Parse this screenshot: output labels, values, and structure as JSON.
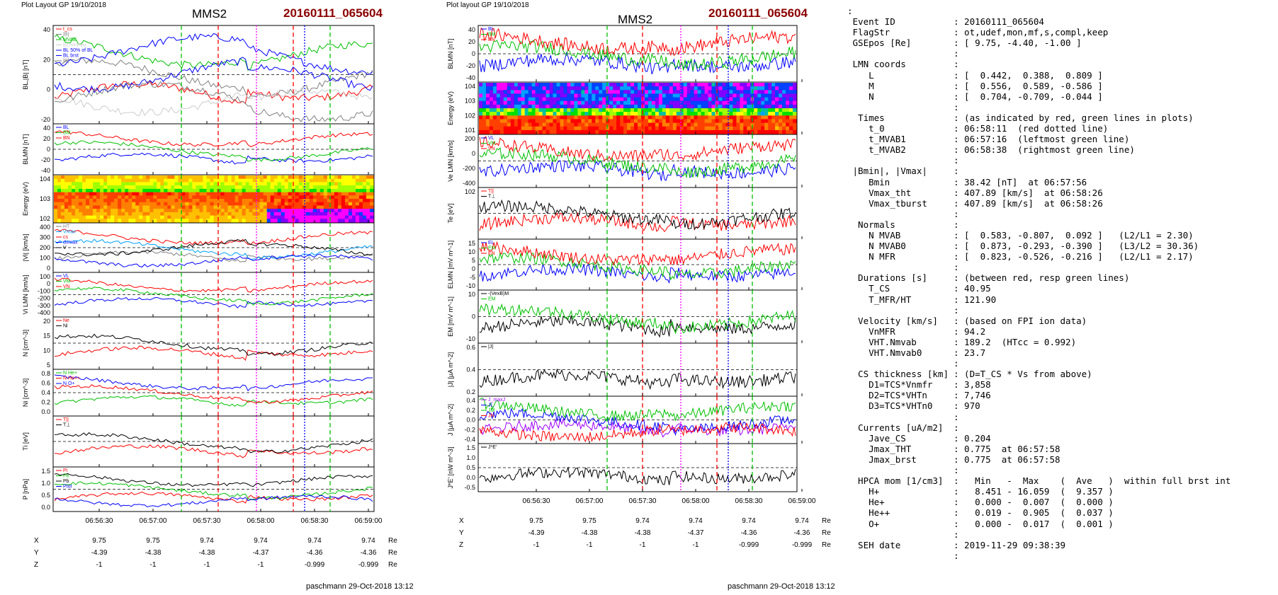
{
  "left_figure": {
    "header": "Plot Layout GP 19/10/2018",
    "probe": "MMS2",
    "event": "20160111_065604",
    "credit": "paschmann 29-Oct-2018 13:12",
    "time_ticks": [
      "06:56:30",
      "06:57:00",
      "06:57:30",
      "06:58:00",
      "06:58:30",
      "06:59:00"
    ],
    "panels": [
      {
        "ylabel": "BL,|B| [nT]",
        "yticks": [
          "40",
          "20",
          "0",
          "-20"
        ],
        "legend": [
          "t_cs",
          "|B|",
          "MVAB",
          "BLminmax",
          "BL 50% of BL",
          "BL brst",
          "|B|"
        ],
        "legend_colors": [
          "#ff0000",
          "#808080",
          "#00c000",
          "#cccccc",
          "#0000ff",
          "#0000ff",
          "#808080"
        ]
      },
      {
        "ylabel": "BLMN [nT]",
        "yticks": [
          "40",
          "20",
          "0",
          "-20",
          "-40"
        ],
        "legend": [
          "BL",
          "BM",
          "BN"
        ],
        "legend_colors": [
          "#0000ff",
          "#00c000",
          "#ff0000"
        ]
      },
      {
        "ylabel": "Energy (eV)",
        "yticks": [
          "10^4",
          "10^3",
          "10^2"
        ]
      },
      {
        "ylabel": "|Vi| [km/s]",
        "yticks": [
          "400",
          "300",
          "200",
          "100",
          "0"
        ],
        "legend": [
          "HT",
          "Vmax",
          "cs",
          "dvmax",
          "V"
        ],
        "legend_colors": [
          "#808080",
          "#00a0ff",
          "#ff0000",
          "#0000ff",
          "#000000"
        ]
      },
      {
        "ylabel": "Vi LMN [km/s]",
        "yticks": [
          "100",
          "0",
          "-100",
          "-200",
          "-300",
          "-400"
        ],
        "legend": [
          "VL",
          "VM",
          "VN"
        ],
        "legend_colors": [
          "#0000ff",
          "#00c000",
          "#ff0000"
        ]
      },
      {
        "ylabel": "N [cm^-3]",
        "yticks": [
          "20",
          "15",
          "10",
          "5"
        ],
        "legend": [
          "Ne",
          "Ni"
        ],
        "legend_colors": [
          "#ff0000",
          "#000000"
        ]
      },
      {
        "ylabel": "Ni [cm^-3]",
        "yticks": [
          "0.8",
          "0.6",
          "0.4",
          "0.2",
          "0.0"
        ],
        "legend": [
          "N He+",
          "N He++",
          "N O+"
        ],
        "legend_colors": [
          "#00c000",
          "#ff0000",
          "#0000ff"
        ]
      },
      {
        "ylabel": "Ti [eV]",
        "yticks": [],
        "legend": [
          "T||",
          "T⊥"
        ],
        "legend_colors": [
          "#ff0000",
          "#000000"
        ]
      },
      {
        "ylabel": "P [nPa]",
        "yticks": [
          "1.5",
          "1.0",
          "0.5",
          "0.0"
        ],
        "legend": [
          "Pi",
          "Pe",
          "Pb",
          "Ptot"
        ],
        "legend_colors": [
          "#ff0000",
          "#00c000",
          "#000000",
          "#0000ff"
        ]
      }
    ],
    "orbit": {
      "labels": [
        "X",
        "Y",
        "Z"
      ],
      "unit": "Re",
      "rows": [
        [
          "9.75",
          "9.75",
          "9.74",
          "9.74",
          "9.74",
          "9.74"
        ],
        [
          "-4.39",
          "-4.38",
          "-4.38",
          "-4.37",
          "-4.36",
          "-4.36"
        ],
        [
          "-1",
          "-1",
          "-1",
          "-1",
          "-0.999",
          "-0.999"
        ]
      ]
    }
  },
  "right_figure": {
    "header": "Plot layout GP 19/10/2018",
    "probe": "MMS2",
    "event": "20160111_065604",
    "credit": "paschmann 29-Oct-2018 13:12",
    "time_ticks": [
      "06:56:30",
      "06:57:00",
      "06:57:30",
      "06:58:00",
      "06:58:30",
      "06:59:00"
    ],
    "panels": [
      {
        "ylabel": "BLMN [nT]",
        "yticks": [
          "40",
          "20",
          "0",
          "-20",
          "-40"
        ],
        "legend": [
          "BL",
          "BM",
          "BN"
        ],
        "legend_colors": [
          "#0000ff",
          "#00c000",
          "#ff0000"
        ]
      },
      {
        "ylabel": "Energy (eV)",
        "yticks": [
          "10^4",
          "10^3",
          "10^2",
          "10^1"
        ]
      },
      {
        "ylabel": "Ve LMN [km/s]",
        "yticks": [
          "200",
          "0",
          "-200",
          "-400"
        ],
        "legend": [
          "VL",
          "VM",
          "VN"
        ],
        "legend_colors": [
          "#0000ff",
          "#00c000",
          "#ff0000"
        ]
      },
      {
        "ylabel": "Te [eV]",
        "yticks": [
          "10^2"
        ],
        "legend": [
          "T||",
          "T⊥"
        ],
        "legend_colors": [
          "#ff0000",
          "#000000"
        ]
      },
      {
        "ylabel": "ELMN [mV m^-1]",
        "yticks": [
          "15",
          "10",
          "5",
          "0",
          "-5",
          "-10"
        ],
        "legend": [
          "EL",
          "EM",
          "EN"
        ],
        "legend_colors": [
          "#0000ff",
          "#00c000",
          "#ff0000"
        ]
      },
      {
        "ylabel": "EM [mV m^-1]",
        "yticks": [
          "10",
          "0",
          "-10"
        ],
        "legend": [
          "-(VexB)M",
          "EM"
        ],
        "legend_colors": [
          "#000000",
          "#00c000"
        ]
      },
      {
        "ylabel": "|J| [µA m^-2]",
        "yticks": [
          "0.6",
          "0.4",
          "0.2"
        ],
        "legend": [
          "|J|"
        ],
        "legend_colors": [
          "#000000"
        ]
      },
      {
        "ylabel": "J [µA m^-2]",
        "yticks": [
          "0.4",
          "0.2",
          "0.0",
          "-0.2",
          "-0.4"
        ],
        "legend": [
          "J_maxJ",
          "JL",
          "JM",
          "JN"
        ],
        "legend_colors": [
          "#a000ff",
          "#0000ff",
          "#00c000",
          "#ff0000"
        ]
      },
      {
        "ylabel": "J*E' [nW m^-3]",
        "yticks": [
          "1.5",
          "1.0",
          "0.5",
          "0.0",
          "-0.5"
        ],
        "legend": [
          "J*E'"
        ],
        "legend_colors": [
          "#000000"
        ]
      }
    ],
    "orbit": {
      "labels": [
        "X",
        "Y",
        "Z"
      ],
      "unit": "Re",
      "rows": [
        [
          "9.75",
          "9.75",
          "9.74",
          "9.74",
          "9.74",
          "9.74"
        ],
        [
          "-4.39",
          "-4.38",
          "-4.38",
          "-4.37",
          "-4.36",
          "-4.36"
        ],
        [
          "-1",
          "-1",
          "-1",
          "-1",
          "-0.999",
          "-0.999"
        ]
      ]
    }
  },
  "summary": {
    "leading_mark": ":",
    "rows": [
      [
        "Event ID",
        "20160111_065604"
      ],
      [
        "FlagStr",
        "ot,udef,mon,mf,s,compl,keep"
      ],
      [
        "GSEpos [Re]",
        "[ 9.75, -4.40, -1.00 ]"
      ],
      [
        "",
        ""
      ],
      [
        "LMN coords",
        ""
      ],
      [
        "   L",
        "[  0.442,  0.388,  0.809 ]"
      ],
      [
        "   M",
        "[  0.556,  0.589, -0.586 ]"
      ],
      [
        "   N",
        "[  0.704, -0.709, -0.044 ]"
      ],
      [
        "",
        ""
      ],
      [
        " Times",
        "(as indicated by red, green lines in plots)"
      ],
      [
        "   t_0",
        "06:58:11  (red dotted line)"
      ],
      [
        "   t_MVAB1",
        "06:57:16  (leftmost green line)"
      ],
      [
        "   t_MVAB2",
        "06:58:38  (rightmost green line)"
      ],
      [
        "",
        ""
      ],
      [
        "|Bmin|, |Vmax|",
        ""
      ],
      [
        "   Bmin",
        "38.42 [nT]  at 06:57:56"
      ],
      [
        "   Vmax_tht",
        "407.89 [km/s]  at 06:58:26"
      ],
      [
        "   Vmax_tburst",
        "407.89 [km/s]  at 06:58:26"
      ],
      [
        "",
        ""
      ],
      [
        " Normals",
        ""
      ],
      [
        "   N MVAB",
        "[  0.583, -0.807,  0.092 ]   (L2/L1 = 2.30)"
      ],
      [
        "   N MVAB0",
        "[  0.873, -0.293, -0.390 ]   (L3/L2 = 30.36)"
      ],
      [
        "   N MFR",
        "[  0.823, -0.526, -0.216 ]   (L2/L1 = 2.17)"
      ],
      [
        "",
        ""
      ],
      [
        " Durations [s]",
        "(between red, resp green lines)"
      ],
      [
        "   T_CS",
        "40.95"
      ],
      [
        "   T_MFR/HT",
        "121.90"
      ],
      [
        "",
        ""
      ],
      [
        " Velocity [km/s]",
        "(based on FPI ion data)"
      ],
      [
        "   VnMFR",
        "94.2"
      ],
      [
        "   VHT.Nmvab",
        "189.2  (HTcc = 0.992)"
      ],
      [
        "   VHT.Nmvab0",
        "23.7"
      ],
      [
        "",
        ""
      ],
      [
        " CS thickness [km]",
        "(D=T_CS * Vs from above)"
      ],
      [
        "   D1=TCS*Vnmfr",
        "3,858"
      ],
      [
        "   D2=TCS*VHTn",
        "7,746"
      ],
      [
        "   D3=TCS*VHTn0",
        "970"
      ],
      [
        "",
        ""
      ],
      [
        " Currents [uA/m2]",
        ""
      ],
      [
        "   Jave_CS",
        "0.204"
      ],
      [
        "   Jmax_THT",
        "0.775  at 06:57:58"
      ],
      [
        "   Jmax_brst",
        "0.775  at 06:57:58"
      ],
      [
        "",
        ""
      ],
      [
        " HPCA mom [1/cm3]",
        "  Min   -  Max    (  Ave   )  within full brst int"
      ],
      [
        "   H+",
        "  8.451 - 16.059  (  9.357 )"
      ],
      [
        "   He+",
        "  0.000 -  0.007  (  0.000 )"
      ],
      [
        "   He++",
        "  0.019 -  0.905  (  0.037 )"
      ],
      [
        "   O+",
        "  0.000 -  0.017  (  0.001 )"
      ],
      [
        "",
        ""
      ],
      [
        " SEH date",
        "2019-11-29 09:38:39"
      ],
      [
        "",
        ""
      ]
    ]
  },
  "chart_data": [
    {
      "type": "line",
      "title": "MMS2 20160111_065604",
      "x": [
        "06:56:30",
        "06:57:00",
        "06:57:30",
        "06:58:00",
        "06:58:30",
        "06:59:00"
      ],
      "series": [
        {
          "name": "BL",
          "values": [
            -30,
            -30,
            -25,
            0,
            35,
            22
          ]
        },
        {
          "name": "|B|",
          "values": [
            45,
            45,
            44,
            45,
            45,
            45
          ]
        },
        {
          "name": "Ni",
          "values": [
            12,
            11,
            13,
            17,
            12,
            4
          ]
        },
        {
          "name": "N He++",
          "values": [
            0.02,
            0.03,
            0.05,
            0.1,
            0.8,
            0.02
          ]
        },
        {
          "name": "|Vi|",
          "values": [
            100,
            120,
            180,
            260,
            360,
            300
          ]
        }
      ]
    },
    {
      "type": "line",
      "title": "MMS2 20160111_065604",
      "x": [
        "06:56:30",
        "06:57:00",
        "06:57:30",
        "06:58:00",
        "06:58:30",
        "06:59:00"
      ],
      "series": [
        {
          "name": "BL",
          "values": [
            -30,
            -30,
            -20,
            5,
            35,
            30
          ]
        },
        {
          "name": "|J|",
          "values": [
            0.15,
            0.2,
            0.3,
            0.45,
            0.35,
            0.1
          ]
        },
        {
          "name": "J*E'",
          "values": [
            0.0,
            0.0,
            0.3,
            0.5,
            0.4,
            0.0
          ]
        }
      ]
    }
  ]
}
